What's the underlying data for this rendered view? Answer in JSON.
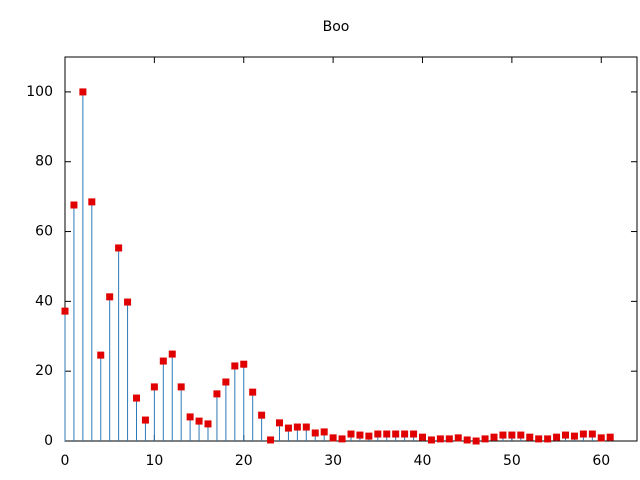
{
  "chart_data": {
    "type": "stem",
    "title": "Boo",
    "x": [
      0,
      1,
      2,
      3,
      4,
      5,
      6,
      7,
      8,
      9,
      10,
      11,
      12,
      13,
      14,
      15,
      16,
      17,
      18,
      19,
      20,
      21,
      22,
      23,
      24,
      25,
      26,
      27,
      28,
      29,
      30,
      31,
      32,
      33,
      34,
      35,
      36,
      37,
      38,
      39,
      40,
      41,
      42,
      43,
      44,
      45,
      46,
      47,
      48,
      49,
      50,
      51,
      52,
      53,
      54,
      55,
      56,
      57,
      58,
      59,
      60,
      61
    ],
    "values": [
      37.2,
      67.6,
      100,
      68.5,
      24.6,
      41.3,
      55.3,
      39.8,
      12.3,
      6,
      15.5,
      22.9,
      24.9,
      15.5,
      6.9,
      5.7,
      4.9,
      13.5,
      16.9,
      21.5,
      22,
      14,
      7.4,
      0.3,
      5.2,
      3.7,
      4,
      4,
      2.3,
      2.6,
      0.9,
      0.6,
      2,
      1.7,
      1.4,
      2,
      2,
      2,
      2,
      2,
      1.1,
      0.3,
      0.6,
      0.6,
      0.9,
      0.3,
      0,
      0.6,
      1.1,
      1.7,
      1.7,
      1.7,
      1.1,
      0.6,
      0.6,
      1.1,
      1.7,
      1.4,
      2,
      2,
      0.9,
      1.1
    ],
    "stem_color": "#2d7ab8",
    "marker_color": "#e00000",
    "xlim": [
      0,
      64
    ],
    "xticks": [
      0,
      10,
      20,
      30,
      40,
      50,
      60
    ],
    "ylim": [
      0,
      110
    ],
    "yticks": [
      0,
      20,
      40,
      60,
      80,
      100
    ]
  }
}
